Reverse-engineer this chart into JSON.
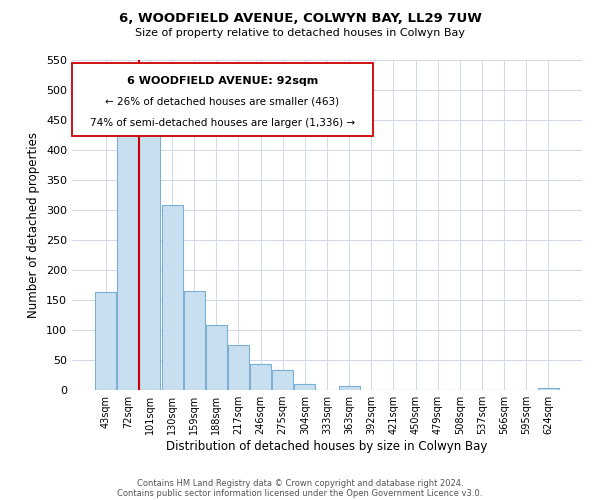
{
  "title": "6, WOODFIELD AVENUE, COLWYN BAY, LL29 7UW",
  "subtitle": "Size of property relative to detached houses in Colwyn Bay",
  "xlabel": "Distribution of detached houses by size in Colwyn Bay",
  "ylabel": "Number of detached properties",
  "bar_labels": [
    "43sqm",
    "72sqm",
    "101sqm",
    "130sqm",
    "159sqm",
    "188sqm",
    "217sqm",
    "246sqm",
    "275sqm",
    "304sqm",
    "333sqm",
    "363sqm",
    "392sqm",
    "421sqm",
    "450sqm",
    "479sqm",
    "508sqm",
    "537sqm",
    "566sqm",
    "595sqm",
    "624sqm"
  ],
  "bar_heights": [
    163,
    450,
    435,
    308,
    165,
    108,
    75,
    43,
    33,
    10,
    0,
    7,
    0,
    0,
    0,
    0,
    0,
    0,
    0,
    0,
    3
  ],
  "bar_color": "#c8dff0",
  "bar_edge_color": "#7bafd4",
  "marker_color": "#cc0000",
  "marker_bar_index": 2,
  "ylim": [
    0,
    550
  ],
  "yticks": [
    0,
    50,
    100,
    150,
    200,
    250,
    300,
    350,
    400,
    450,
    500,
    550
  ],
  "annotation_title": "6 WOODFIELD AVENUE: 92sqm",
  "annotation_line1": "← 26% of detached houses are smaller (463)",
  "annotation_line2": "74% of semi-detached houses are larger (1,336) →",
  "footer1": "Contains HM Land Registry data © Crown copyright and database right 2024.",
  "footer2": "Contains public sector information licensed under the Open Government Licence v3.0.",
  "bg_color": "#ffffff",
  "grid_color": "#d0d8e8"
}
